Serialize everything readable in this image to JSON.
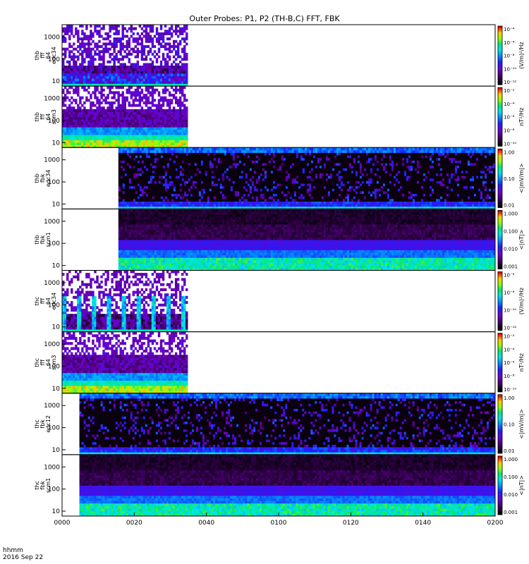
{
  "title": "Outer Probes: P1, P2 (TH-B,C) FFT, FBK",
  "time_label": "hhmm",
  "date_label": "2016 Sep 22",
  "chart_data": {
    "type": "heatmap",
    "x_ticks": [
      "0000",
      "0020",
      "0040",
      "0100",
      "0120",
      "0140",
      "0200"
    ],
    "panels": [
      {
        "label": [
          "thb",
          "fff",
          "64",
          "edc34"
        ],
        "y_ticks": [
          "10",
          "100",
          "1000"
        ],
        "cb_ticks": [
          "10⁻⁴",
          "10⁻⁶",
          "10⁻⁸",
          "10⁻¹⁰",
          "10⁻¹²"
        ],
        "cb_label": "(V/m)²/Hz",
        "data_start": 0.0,
        "data_end": 0.29,
        "kind": "fff_e"
      },
      {
        "label": [
          "thb",
          "fff",
          "64",
          "scm3"
        ],
        "y_ticks": [
          "10",
          "100",
          "1000"
        ],
        "cb_ticks": [
          "10⁻²",
          "10⁻⁴",
          "10⁻⁶",
          "10⁻⁸",
          "10⁻¹⁰"
        ],
        "cb_label": "nT²/Hz",
        "data_start": 0.0,
        "data_end": 0.29,
        "kind": "fff_b"
      },
      {
        "label": [
          "thb",
          "fbk",
          "edc34"
        ],
        "y_ticks": [
          "10",
          "100",
          "1000"
        ],
        "cb_ticks": [
          "1.00",
          "0.10",
          "0.01"
        ],
        "cb_label": "<|mV/m|>",
        "data_start": 0.13,
        "data_end": 1.0,
        "kind": "fbk_e"
      },
      {
        "label": [
          "thb",
          "fbk",
          "scm1"
        ],
        "y_ticks": [
          "10",
          "100",
          "1000"
        ],
        "cb_ticks": [
          "1.000",
          "0.100",
          "0.010",
          "0.001"
        ],
        "cb_label": "<|nT|>",
        "data_start": 0.13,
        "data_end": 1.0,
        "kind": "fbk_b"
      },
      {
        "label": [
          "thc",
          "fff",
          "64",
          "edc34"
        ],
        "y_ticks": [
          "10",
          "100",
          "1000"
        ],
        "cb_ticks": [
          "10⁻⁶",
          "10⁻⁸",
          "10⁻¹⁰",
          "10⁻¹²"
        ],
        "cb_label": "(V/m)²/Hz",
        "data_start": 0.0,
        "data_end": 0.29,
        "kind": "fff_e2"
      },
      {
        "label": [
          "thc",
          "fff",
          "64",
          "scm3"
        ],
        "y_ticks": [
          "10",
          "100",
          "1000"
        ],
        "cb_ticks": [
          "10⁻²",
          "10⁻⁴",
          "10⁻⁶",
          "10⁻⁸",
          "10⁻¹⁰"
        ],
        "cb_label": "nT²/Hz",
        "data_start": 0.0,
        "data_end": 0.29,
        "kind": "fff_b"
      },
      {
        "label": [
          "thc",
          "fbk",
          "edc12"
        ],
        "y_ticks": [
          "10",
          "100",
          "1000"
        ],
        "cb_ticks": [
          "1.00",
          "0.10",
          "0.01"
        ],
        "cb_label": "<|mV/m|>",
        "data_start": 0.04,
        "data_end": 1.0,
        "kind": "fbk_e"
      },
      {
        "label": [
          "thc",
          "fbk",
          "scm1"
        ],
        "y_ticks": [
          "10",
          "100",
          "1000"
        ],
        "cb_ticks": [
          "1.000",
          "0.100",
          "0.010",
          "0.001"
        ],
        "cb_label": "<|nT|>",
        "data_start": 0.04,
        "data_end": 1.0,
        "kind": "fbk_b"
      }
    ]
  }
}
